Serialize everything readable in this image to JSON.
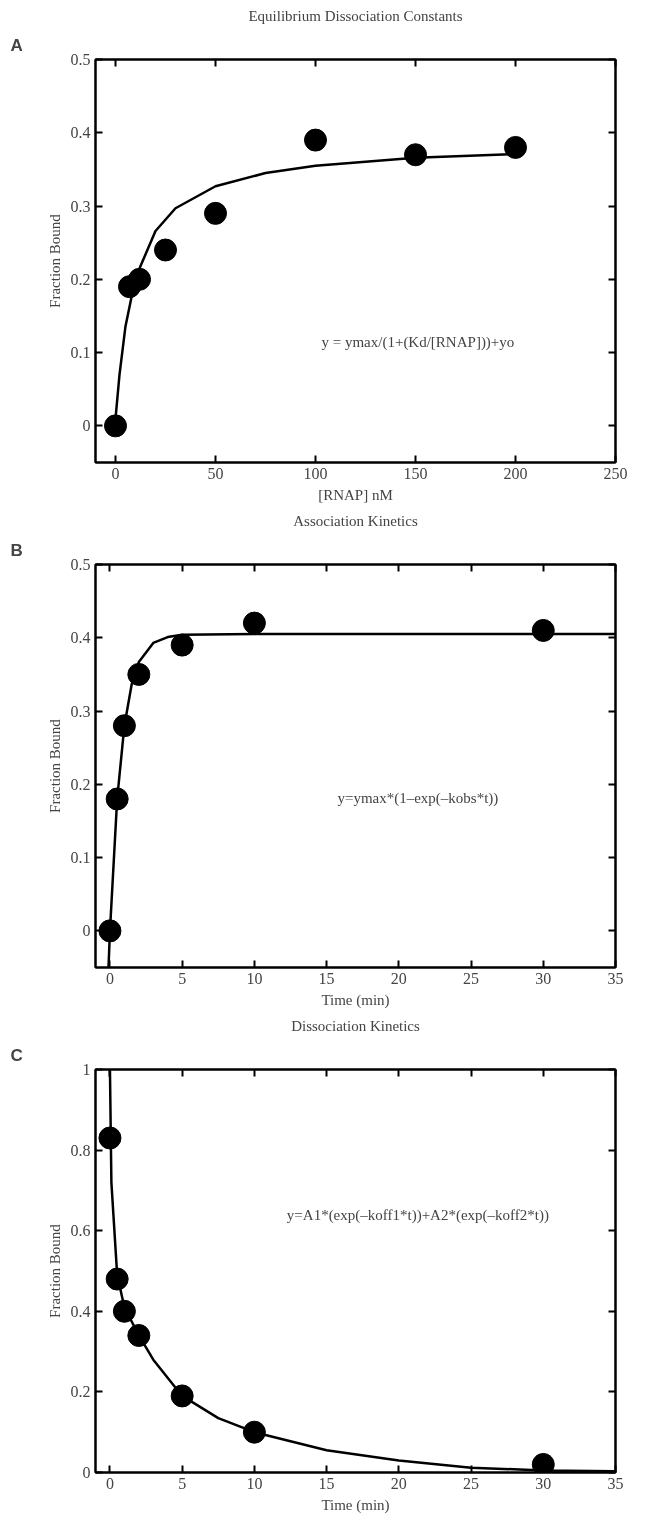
{
  "chart_data": [
    {
      "type": "scatter",
      "title": "Equilibrium Dissociation Constants",
      "xlabel": "[RNAP] nM",
      "ylabel": "Fraction Bound",
      "annotations": [
        "A",
        "y = ymax/(1+(Kd/[RNAP]))+yo"
      ],
      "xlim": [
        -10,
        250
      ],
      "xticks": [
        0,
        50,
        100,
        150,
        200,
        250
      ],
      "ylim": [
        -0.05,
        0.5
      ],
      "yticks": [
        0,
        0.1,
        0.2,
        0.3,
        0.4,
        0.5
      ],
      "grid": false,
      "series": [
        {
          "marker": "circle",
          "color": "#000000",
          "x": [
            0,
            7,
            12,
            25,
            50,
            100,
            150,
            200
          ],
          "values": [
            0,
            0.19,
            0.2,
            0.24,
            0.29,
            0.39,
            0.37,
            0.38
          ]
        },
        {
          "type": "line",
          "marker": "none",
          "color": "#000000",
          "line_style": "solid",
          "x": [
            0,
            2,
            5,
            10,
            20,
            30,
            50,
            75,
            100,
            150,
            200
          ],
          "values": [
            0.01,
            0.07,
            0.136,
            0.202,
            0.266,
            0.297,
            0.327,
            0.345,
            0.355,
            0.366,
            0.371
          ]
        }
      ]
    },
    {
      "type": "scatter",
      "title": "Association Kinetics",
      "xlabel": "Time (min)",
      "ylabel": "Fraction Bound",
      "annotations": [
        "B",
        "y=ymax*(1–exp(–kobs*t))"
      ],
      "xlim": [
        -1,
        35
      ],
      "xticks": [
        0,
        5,
        10,
        15,
        20,
        25,
        30,
        35
      ],
      "ylim": [
        -0.05,
        0.5
      ],
      "yticks": [
        0,
        0.1,
        0.2,
        0.3,
        0.4,
        0.5
      ],
      "grid": false,
      "series": [
        {
          "marker": "circle",
          "color": "#000000",
          "x": [
            0,
            0.5,
            1,
            2,
            5,
            10,
            30
          ],
          "values": [
            0,
            0.18,
            0.28,
            0.35,
            0.39,
            0.42,
            0.41
          ]
        },
        {
          "type": "line",
          "marker": "none",
          "color": "#000000",
          "line_style": "solid",
          "x": [
            -0.1,
            0,
            0.5,
            1,
            1.5,
            2,
            3,
            4,
            5,
            10,
            20,
            35
          ],
          "values": [
            -0.05,
            0,
            0.18,
            0.28,
            0.336,
            0.367,
            0.393,
            0.401,
            0.404,
            0.405,
            0.405,
            0.405
          ]
        }
      ]
    },
    {
      "type": "scatter",
      "title": "Dissociation Kinetics",
      "xlabel": "Time (min)",
      "ylabel": "Fraction Bound",
      "annotations": [
        "C",
        "y=A1*(exp(–koff1*t))+A2*(exp(–koff2*t))"
      ],
      "xlim": [
        -1,
        35
      ],
      "xticks": [
        0,
        5,
        10,
        15,
        20,
        25,
        30,
        35
      ],
      "ylim": [
        0,
        1
      ],
      "yticks": [
        0,
        0.2,
        0.4,
        0.6,
        0.8,
        1
      ],
      "grid": false,
      "series": [
        {
          "marker": "circle",
          "color": "#000000",
          "x": [
            0,
            0.5,
            1,
            2,
            5,
            10,
            30
          ],
          "values": [
            0.83,
            0.48,
            0.4,
            0.34,
            0.19,
            0.1,
            0.02
          ]
        },
        {
          "type": "line",
          "marker": "none",
          "color": "#000000",
          "line_style": "solid",
          "x": [
            0,
            0.1,
            0.5,
            1,
            2,
            3,
            5,
            7.5,
            10,
            15,
            20,
            25,
            30,
            35
          ],
          "values": [
            1,
            0.72,
            0.49,
            0.41,
            0.34,
            0.28,
            0.19,
            0.135,
            0.1,
            0.055,
            0.03,
            0.012,
            0.005,
            0.003
          ]
        }
      ]
    }
  ]
}
